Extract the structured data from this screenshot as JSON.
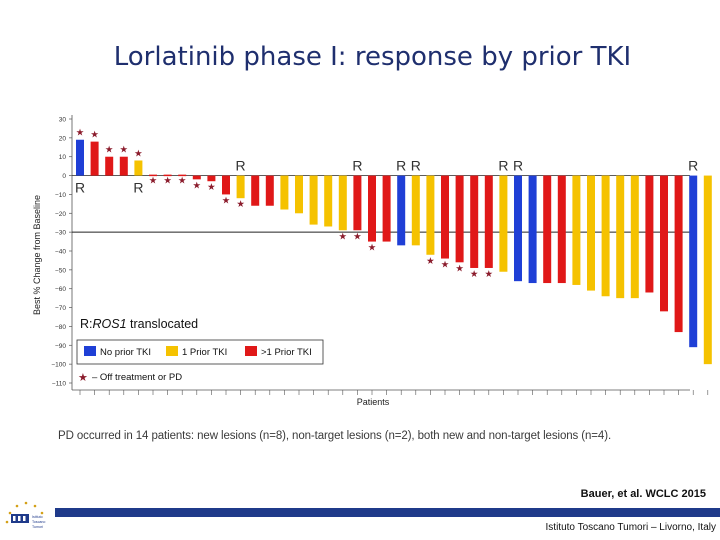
{
  "slide": {
    "title": "Lorlatinib phase I: response by prior TKI",
    "footnote": "PD occurred in 14 patients: new lesions (n=8), non-target lesions (n=2), both new and non-target lesions (n=4).",
    "citation": "Bauer, et al. WCLC 2015",
    "institute": "Istituto Toscano Tumori – Livorno, Italy",
    "logo_text": [
      "Istituto",
      "Toscano",
      "Tumori"
    ]
  },
  "colors": {
    "none": "#1f3fd6",
    "one": "#f5c200",
    "multi": "#e01818",
    "star": "#8b1c2c",
    "title": "#1f2f6e"
  },
  "chart_data": {
    "type": "bar",
    "subtype": "waterfall",
    "title": "",
    "xlabel": "Patients",
    "ylabel": "Best % Change from Baseline",
    "ylim": [
      -110,
      30
    ],
    "yticks": [
      30,
      20,
      10,
      0,
      -10,
      -20,
      -30,
      -40,
      -50,
      -60,
      -70,
      -80,
      -90,
      -100,
      -110
    ],
    "ytick_labels": [
      "30",
      "20",
      "10",
      "0",
      "−10",
      "−20",
      "−30",
      "−40",
      "−50",
      "−60",
      "−70",
      "−80",
      "−90",
      "−100",
      "−110"
    ],
    "reference_line": -30,
    "ros1_marker": "R",
    "annotation_prefix": "R:",
    "annotation_gene": "ROS1",
    "annotation_suffix": " translocated",
    "legend": [
      {
        "key": "none",
        "label": "No prior TKI"
      },
      {
        "key": "one",
        "label": "1 Prior TKI"
      },
      {
        "key": "multi",
        "label": ">1 Prior TKI"
      }
    ],
    "star_legend": "– Off treatment or PD",
    "bars": [
      {
        "value": 19,
        "group": "none",
        "star": true,
        "ros1": true
      },
      {
        "value": 18,
        "group": "multi",
        "star": true,
        "ros1": false
      },
      {
        "value": 10,
        "group": "multi",
        "star": true,
        "ros1": false
      },
      {
        "value": 10,
        "group": "multi",
        "star": true,
        "ros1": false
      },
      {
        "value": 8,
        "group": "one",
        "star": true,
        "ros1": true
      },
      {
        "value": 0.5,
        "group": "multi",
        "star": true,
        "ros1": false
      },
      {
        "value": 0.5,
        "group": "multi",
        "star": true,
        "ros1": false
      },
      {
        "value": 0.5,
        "group": "multi",
        "star": true,
        "ros1": false
      },
      {
        "value": -2,
        "group": "multi",
        "star": true,
        "ros1": false
      },
      {
        "value": -3,
        "group": "multi",
        "star": true,
        "ros1": false
      },
      {
        "value": -10,
        "group": "multi",
        "star": true,
        "ros1": false
      },
      {
        "value": -12,
        "group": "one",
        "star": true,
        "ros1": true
      },
      {
        "value": -16,
        "group": "multi",
        "star": false,
        "ros1": false
      },
      {
        "value": -16,
        "group": "multi",
        "star": false,
        "ros1": false
      },
      {
        "value": -18,
        "group": "one",
        "star": false,
        "ros1": false
      },
      {
        "value": -20,
        "group": "one",
        "star": false,
        "ros1": false
      },
      {
        "value": -26,
        "group": "one",
        "star": false,
        "ros1": false
      },
      {
        "value": -27,
        "group": "one",
        "star": false,
        "ros1": false
      },
      {
        "value": -29,
        "group": "one",
        "star": true,
        "ros1": false
      },
      {
        "value": -29,
        "group": "multi",
        "star": true,
        "ros1": true
      },
      {
        "value": -35,
        "group": "multi",
        "star": true,
        "ros1": false
      },
      {
        "value": -35,
        "group": "multi",
        "star": false,
        "ros1": false
      },
      {
        "value": -37,
        "group": "none",
        "star": false,
        "ros1": true
      },
      {
        "value": -37,
        "group": "one",
        "star": false,
        "ros1": true
      },
      {
        "value": -42,
        "group": "one",
        "star": true,
        "ros1": false
      },
      {
        "value": -44,
        "group": "multi",
        "star": true,
        "ros1": false
      },
      {
        "value": -46,
        "group": "multi",
        "star": true,
        "ros1": false
      },
      {
        "value": -49,
        "group": "multi",
        "star": true,
        "ros1": false
      },
      {
        "value": -49,
        "group": "multi",
        "star": true,
        "ros1": false
      },
      {
        "value": -51,
        "group": "one",
        "star": false,
        "ros1": true
      },
      {
        "value": -56,
        "group": "none",
        "star": false,
        "ros1": true
      },
      {
        "value": -57,
        "group": "none",
        "star": false,
        "ros1": false
      },
      {
        "value": -57,
        "group": "multi",
        "star": false,
        "ros1": false
      },
      {
        "value": -57,
        "group": "multi",
        "star": false,
        "ros1": false
      },
      {
        "value": -58,
        "group": "one",
        "star": false,
        "ros1": false
      },
      {
        "value": -61,
        "group": "one",
        "star": false,
        "ros1": false
      },
      {
        "value": -64,
        "group": "one",
        "star": false,
        "ros1": false
      },
      {
        "value": -65,
        "group": "one",
        "star": false,
        "ros1": false
      },
      {
        "value": -65,
        "group": "one",
        "star": false,
        "ros1": false
      },
      {
        "value": -62,
        "group": "multi",
        "star": false,
        "ros1": false
      },
      {
        "value": -72,
        "group": "multi",
        "star": false,
        "ros1": false
      },
      {
        "value": -83,
        "group": "multi",
        "star": false,
        "ros1": false
      },
      {
        "value": -91,
        "group": "none",
        "star": false,
        "ros1": true
      },
      {
        "value": -100,
        "group": "one",
        "star": false,
        "ros1": false
      }
    ]
  }
}
